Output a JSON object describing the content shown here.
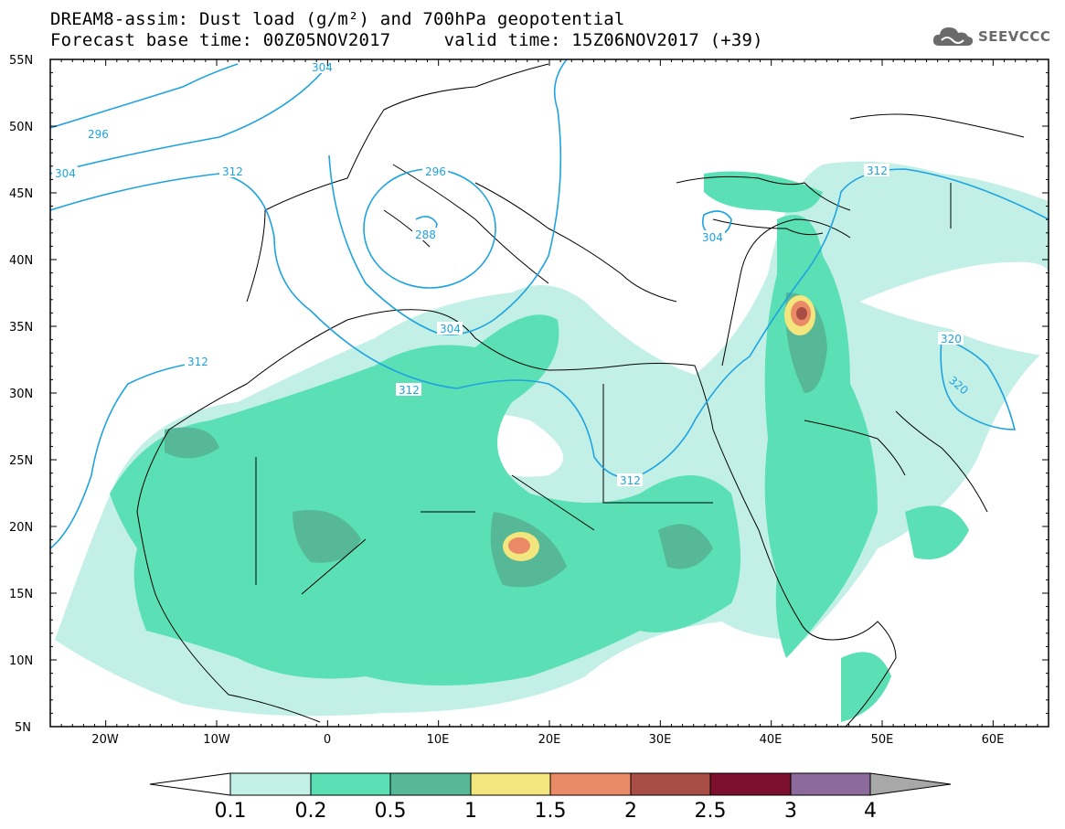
{
  "header": {
    "title_line1": "DREAM8-assim: Dust load (g/m²) and 700hPa geopotential",
    "title_line2": "Forecast base time: 00Z05NOV2017     valid time: 15Z06NOV2017 (+39)"
  },
  "logo": {
    "text": "SEEVCCC",
    "icon": "cloud-icon"
  },
  "map": {
    "lon_range": [
      -25,
      65
    ],
    "lat_range": [
      5,
      55
    ],
    "lat_labels": [
      "55N",
      "50N",
      "45N",
      "40N",
      "35N",
      "30N",
      "25N",
      "20N",
      "15N",
      "10N",
      "5N"
    ],
    "lon_labels": [
      "20W",
      "10W",
      "0",
      "10E",
      "20E",
      "30E",
      "40E",
      "50E",
      "60E"
    ],
    "contour_color": "#1fa3e0",
    "geopotential_labels": [
      "296",
      "304",
      "312",
      "296",
      "288",
      "304",
      "312",
      "312",
      "312",
      "304",
      "312",
      "320",
      "320"
    ]
  },
  "colorbar": {
    "labels": [
      "0.1",
      "0.2",
      "0.5",
      "1",
      "1.5",
      "2",
      "2.5",
      "3",
      "4"
    ],
    "colors": [
      "#c2f0e6",
      "#5ae0b4",
      "#56b896",
      "#f4e67e",
      "#ea8a66",
      "#a84e44",
      "#7c0f2e",
      "#8c6a9c",
      "#a8a8a8"
    ]
  }
}
